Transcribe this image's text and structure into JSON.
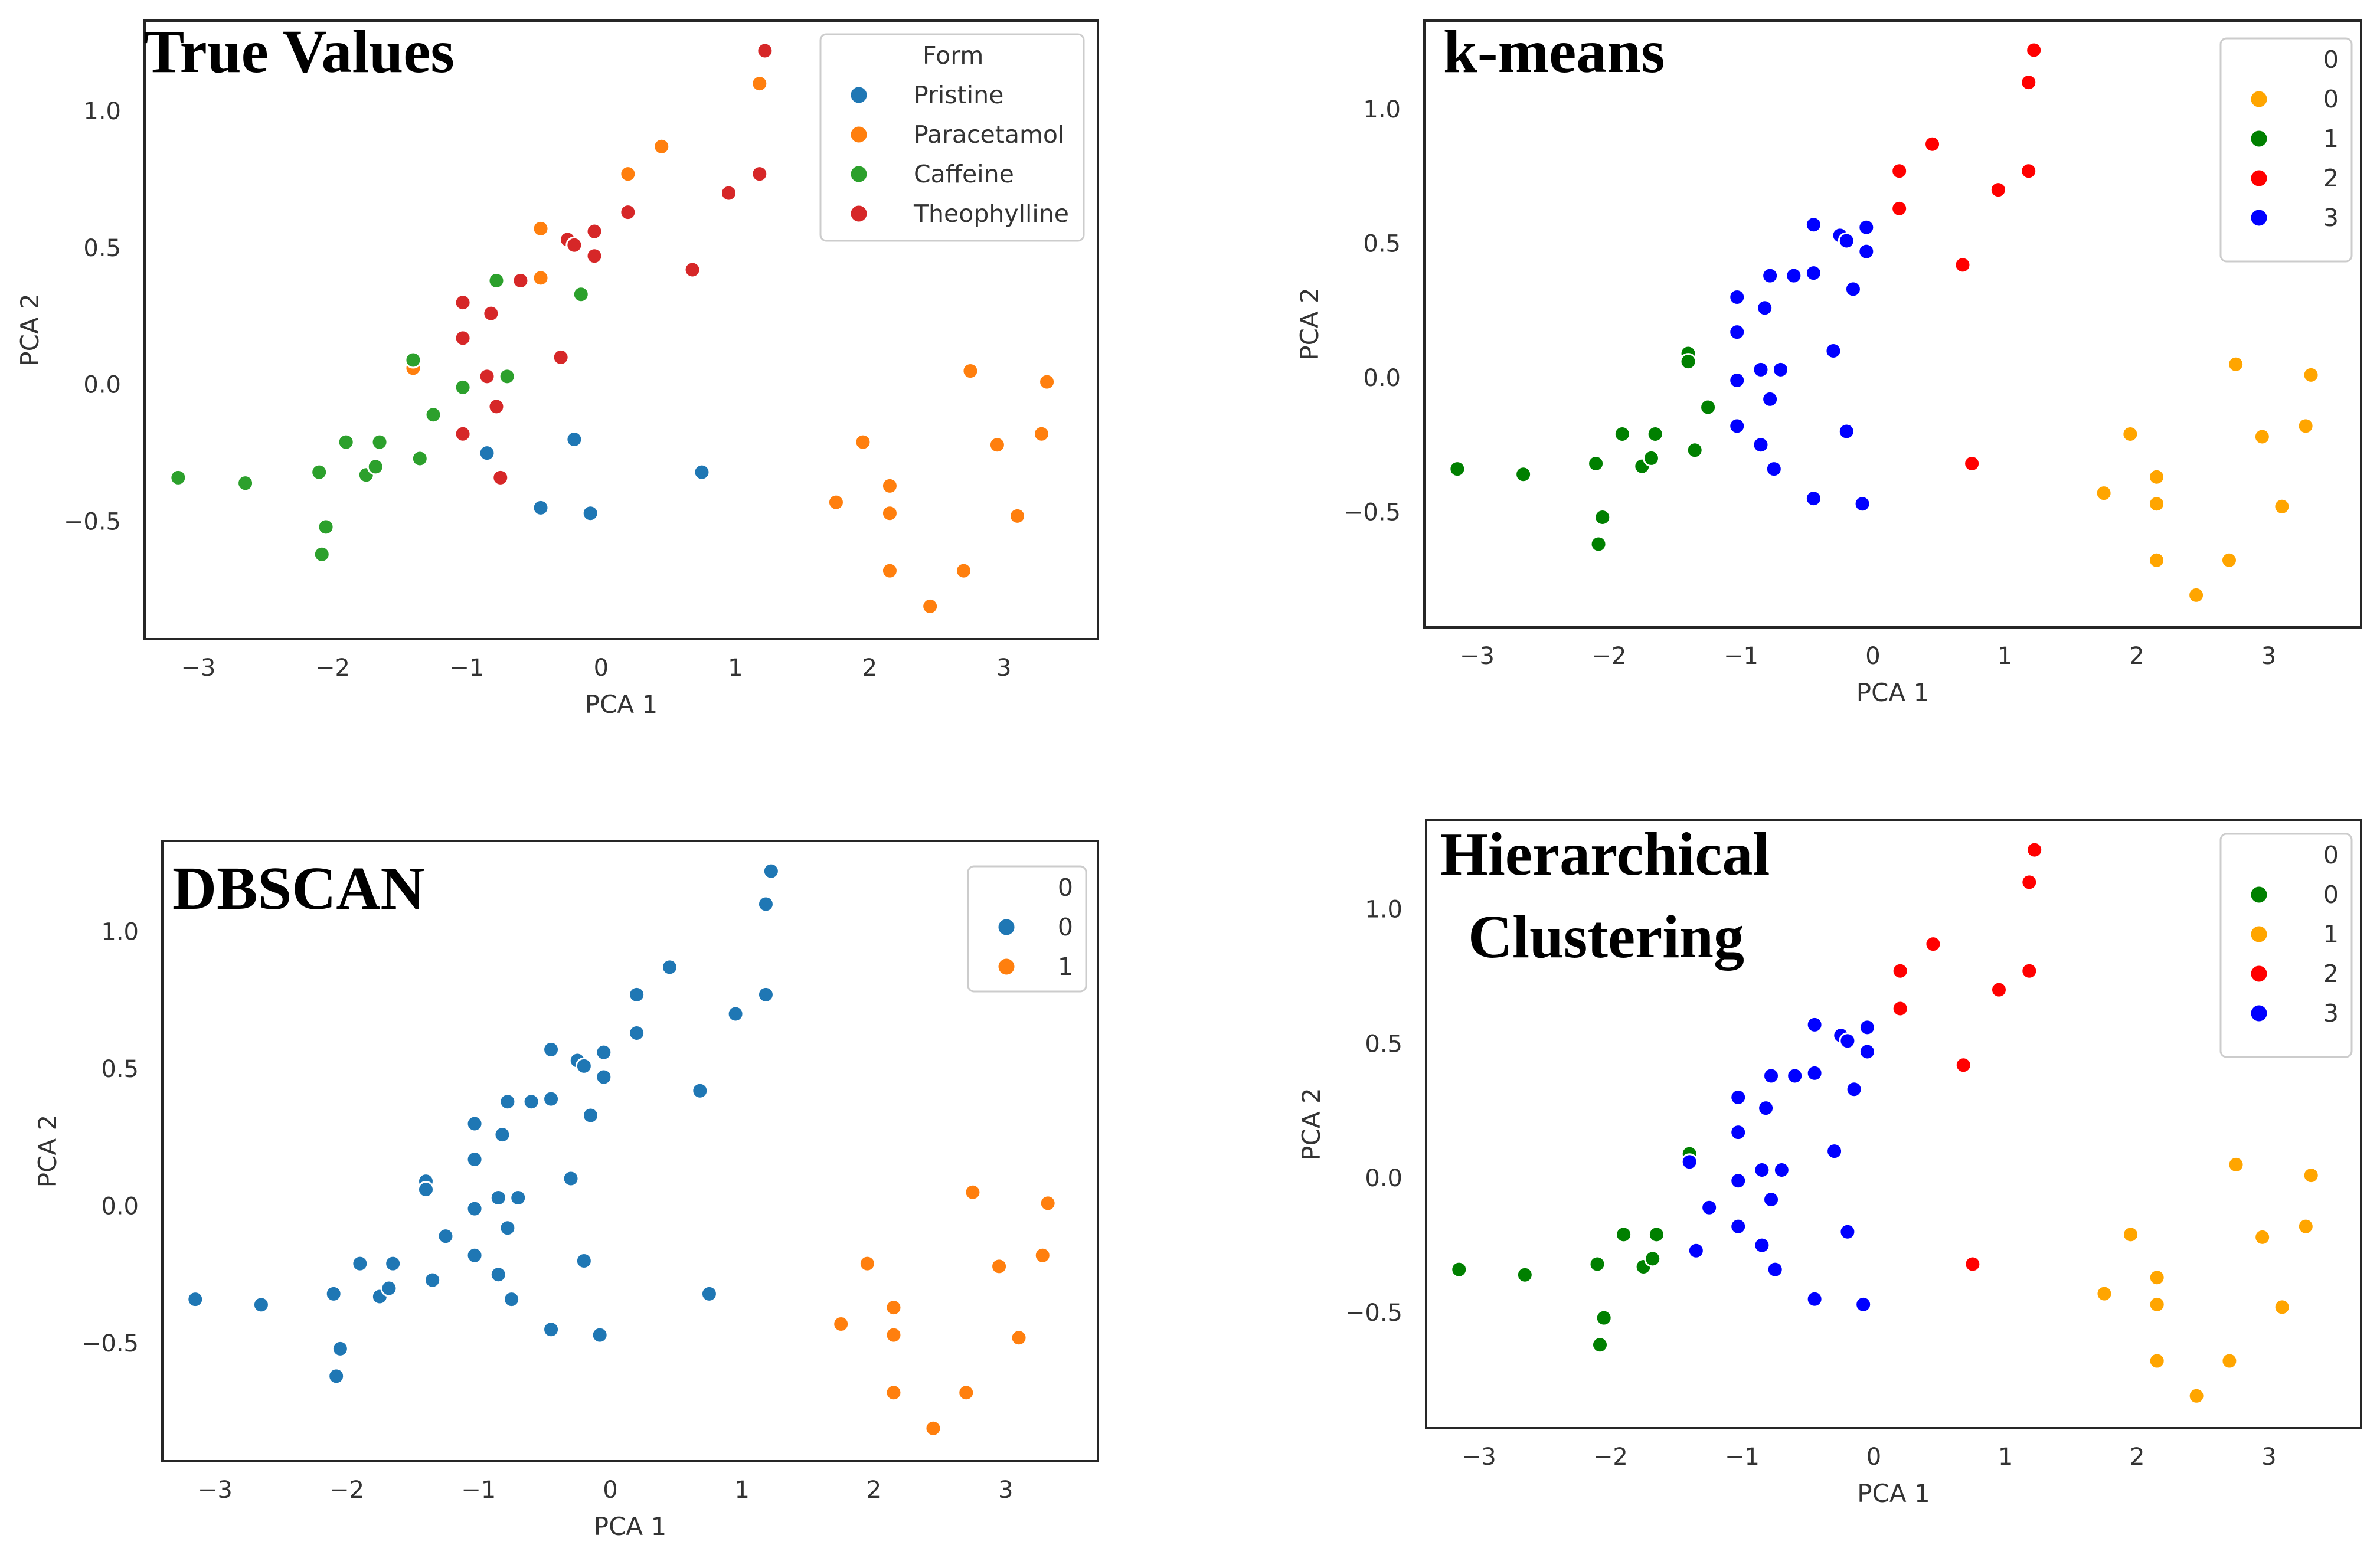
{
  "chart_data": [
    {
      "type": "scatter",
      "title": "True Values",
      "xlabel": "PCA 1",
      "ylabel": "PCA 2",
      "xlim": [
        -3.4,
        3.7
      ],
      "ylim": [
        -0.93,
        1.33
      ],
      "xticks": [
        -3,
        -2,
        -1,
        0,
        1,
        2,
        3
      ],
      "yticks": [
        -0.5,
        0.0,
        0.5,
        1.0
      ],
      "legend": {
        "title": "Form",
        "position": "top-right"
      },
      "series": [
        {
          "name": "Pristine",
          "color": "#1f77b4",
          "points": [
            [
              -0.85,
              -0.25
            ],
            [
              -0.2,
              -0.2
            ],
            [
              -0.45,
              -0.45
            ],
            [
              -0.08,
              -0.47
            ],
            [
              0.75,
              -0.32
            ]
          ]
        },
        {
          "name": "Paracetamol",
          "color": "#ff7f0e",
          "points": [
            [
              -1.4,
              0.06
            ],
            [
              -0.45,
              0.57
            ],
            [
              -0.45,
              0.39
            ],
            [
              0.2,
              0.77
            ],
            [
              0.45,
              0.87
            ],
            [
              1.18,
              1.1
            ],
            [
              1.75,
              -0.43
            ],
            [
              1.95,
              -0.21
            ],
            [
              2.15,
              -0.37
            ],
            [
              2.15,
              -0.47
            ],
            [
              2.15,
              -0.68
            ],
            [
              2.45,
              -0.81
            ],
            [
              2.7,
              -0.68
            ],
            [
              2.75,
              0.05
            ],
            [
              2.95,
              -0.22
            ],
            [
              3.1,
              -0.48
            ],
            [
              3.28,
              -0.18
            ],
            [
              3.32,
              0.01
            ]
          ]
        },
        {
          "name": "Caffeine",
          "color": "#2ca02c",
          "points": [
            [
              -3.15,
              -0.34
            ],
            [
              -2.65,
              -0.36
            ],
            [
              -2.1,
              -0.32
            ],
            [
              -2.05,
              -0.52
            ],
            [
              -2.08,
              -0.62
            ],
            [
              -1.9,
              -0.21
            ],
            [
              -1.75,
              -0.33
            ],
            [
              -1.68,
              -0.3
            ],
            [
              -1.65,
              -0.21
            ],
            [
              -1.4,
              0.09
            ],
            [
              -1.35,
              -0.27
            ],
            [
              -1.25,
              -0.11
            ],
            [
              -1.03,
              -0.01
            ],
            [
              -0.78,
              0.38
            ],
            [
              -0.7,
              0.03
            ],
            [
              -0.15,
              0.33
            ]
          ]
        },
        {
          "name": "Theophylline",
          "color": "#d62728",
          "points": [
            [
              -1.03,
              0.3
            ],
            [
              -1.03,
              0.17
            ],
            [
              -1.03,
              -0.18
            ],
            [
              -0.85,
              0.03
            ],
            [
              -0.82,
              0.26
            ],
            [
              -0.78,
              -0.08
            ],
            [
              -0.75,
              -0.34
            ],
            [
              -0.6,
              0.38
            ],
            [
              -0.3,
              0.1
            ],
            [
              -0.25,
              0.53
            ],
            [
              -0.2,
              0.51
            ],
            [
              -0.05,
              0.56
            ],
            [
              -0.05,
              0.47
            ],
            [
              0.2,
              0.63
            ],
            [
              0.68,
              0.42
            ],
            [
              0.95,
              0.7
            ],
            [
              1.18,
              0.77
            ],
            [
              1.22,
              1.22
            ]
          ]
        }
      ]
    },
    {
      "type": "scatter",
      "title": "k-means",
      "xlabel": "PCA 1",
      "ylabel": "PCA 2",
      "xlim": [
        -3.4,
        3.7
      ],
      "ylim": [
        -0.93,
        1.33
      ],
      "xticks": [
        -3,
        -2,
        -1,
        0,
        1,
        2,
        3
      ],
      "yticks": [
        -0.5,
        0.0,
        0.5,
        1.0
      ],
      "legend": {
        "title": "0",
        "position": "top-right"
      },
      "series": [
        {
          "name": "0",
          "color": "#ffa500",
          "points": [
            [
              1.75,
              -0.43
            ],
            [
              1.95,
              -0.21
            ],
            [
              2.15,
              -0.37
            ],
            [
              2.15,
              -0.47
            ],
            [
              2.15,
              -0.68
            ],
            [
              2.45,
              -0.81
            ],
            [
              2.7,
              -0.68
            ],
            [
              2.75,
              0.05
            ],
            [
              2.95,
              -0.22
            ],
            [
              3.1,
              -0.48
            ],
            [
              3.28,
              -0.18
            ],
            [
              3.32,
              0.01
            ]
          ]
        },
        {
          "name": "1",
          "color": "#008000",
          "points": [
            [
              -3.15,
              -0.34
            ],
            [
              -2.65,
              -0.36
            ],
            [
              -2.1,
              -0.32
            ],
            [
              -2.05,
              -0.52
            ],
            [
              -2.08,
              -0.62
            ],
            [
              -1.9,
              -0.21
            ],
            [
              -1.75,
              -0.33
            ],
            [
              -1.68,
              -0.3
            ],
            [
              -1.65,
              -0.21
            ],
            [
              -1.4,
              0.09
            ],
            [
              -1.4,
              0.06
            ],
            [
              -1.35,
              -0.27
            ],
            [
              -1.25,
              -0.11
            ]
          ]
        },
        {
          "name": "2",
          "color": "#ff0000",
          "points": [
            [
              0.2,
              0.77
            ],
            [
              0.2,
              0.63
            ],
            [
              0.45,
              0.87
            ],
            [
              0.68,
              0.42
            ],
            [
              0.75,
              -0.32
            ],
            [
              0.95,
              0.7
            ],
            [
              1.18,
              1.1
            ],
            [
              1.18,
              0.77
            ],
            [
              1.22,
              1.22
            ]
          ]
        },
        {
          "name": "3",
          "color": "#0000ff",
          "points": [
            [
              -1.03,
              0.3
            ],
            [
              -1.03,
              0.17
            ],
            [
              -1.03,
              -0.01
            ],
            [
              -1.03,
              -0.18
            ],
            [
              -0.85,
              0.03
            ],
            [
              -0.85,
              -0.25
            ],
            [
              -0.82,
              0.26
            ],
            [
              -0.78,
              0.38
            ],
            [
              -0.78,
              -0.08
            ],
            [
              -0.75,
              -0.34
            ],
            [
              -0.7,
              0.03
            ],
            [
              -0.6,
              0.38
            ],
            [
              -0.45,
              0.57
            ],
            [
              -0.45,
              0.39
            ],
            [
              -0.45,
              -0.45
            ],
            [
              -0.3,
              0.1
            ],
            [
              -0.25,
              0.53
            ],
            [
              -0.2,
              0.51
            ],
            [
              -0.2,
              -0.2
            ],
            [
              -0.15,
              0.33
            ],
            [
              -0.08,
              -0.47
            ],
            [
              -0.05,
              0.56
            ],
            [
              -0.05,
              0.47
            ]
          ]
        }
      ]
    },
    {
      "type": "scatter",
      "title": "DBSCAN",
      "xlabel": "PCA 1",
      "ylabel": "PCA 2",
      "xlim": [
        -3.4,
        3.7
      ],
      "ylim": [
        -0.93,
        1.33
      ],
      "xticks": [
        -3,
        -2,
        -1,
        0,
        1,
        2,
        3
      ],
      "yticks": [
        -0.5,
        0.0,
        0.5,
        1.0
      ],
      "legend": {
        "title": "0",
        "position": "top-right"
      },
      "series": [
        {
          "name": "0",
          "color": "#1f77b4",
          "points": [
            [
              -3.15,
              -0.34
            ],
            [
              -2.65,
              -0.36
            ],
            [
              -2.1,
              -0.32
            ],
            [
              -2.05,
              -0.52
            ],
            [
              -2.08,
              -0.62
            ],
            [
              -1.9,
              -0.21
            ],
            [
              -1.75,
              -0.33
            ],
            [
              -1.68,
              -0.3
            ],
            [
              -1.65,
              -0.21
            ],
            [
              -1.4,
              0.09
            ],
            [
              -1.4,
              0.06
            ],
            [
              -1.35,
              -0.27
            ],
            [
              -1.25,
              -0.11
            ],
            [
              -1.03,
              0.3
            ],
            [
              -1.03,
              0.17
            ],
            [
              -1.03,
              -0.01
            ],
            [
              -1.03,
              -0.18
            ],
            [
              -0.85,
              0.03
            ],
            [
              -0.85,
              -0.25
            ],
            [
              -0.82,
              0.26
            ],
            [
              -0.78,
              0.38
            ],
            [
              -0.78,
              -0.08
            ],
            [
              -0.75,
              -0.34
            ],
            [
              -0.7,
              0.03
            ],
            [
              -0.6,
              0.38
            ],
            [
              -0.45,
              0.57
            ],
            [
              -0.45,
              0.39
            ],
            [
              -0.45,
              -0.45
            ],
            [
              -0.3,
              0.1
            ],
            [
              -0.25,
              0.53
            ],
            [
              -0.2,
              0.51
            ],
            [
              -0.2,
              -0.2
            ],
            [
              -0.15,
              0.33
            ],
            [
              -0.08,
              -0.47
            ],
            [
              -0.05,
              0.56
            ],
            [
              -0.05,
              0.47
            ],
            [
              0.2,
              0.77
            ],
            [
              0.2,
              0.63
            ],
            [
              0.45,
              0.87
            ],
            [
              0.68,
              0.42
            ],
            [
              0.75,
              -0.32
            ],
            [
              0.95,
              0.7
            ],
            [
              1.18,
              1.1
            ],
            [
              1.18,
              0.77
            ],
            [
              1.22,
              1.22
            ]
          ]
        },
        {
          "name": "1",
          "color": "#ff7f0e",
          "points": [
            [
              1.75,
              -0.43
            ],
            [
              1.95,
              -0.21
            ],
            [
              2.15,
              -0.37
            ],
            [
              2.15,
              -0.47
            ],
            [
              2.15,
              -0.68
            ],
            [
              2.45,
              -0.81
            ],
            [
              2.7,
              -0.68
            ],
            [
              2.75,
              0.05
            ],
            [
              2.95,
              -0.22
            ],
            [
              3.1,
              -0.48
            ],
            [
              3.28,
              -0.18
            ],
            [
              3.32,
              0.01
            ]
          ]
        }
      ]
    },
    {
      "type": "scatter",
      "title": "Hierarchical Clustering",
      "xlabel": "PCA 1",
      "ylabel": "PCA 2",
      "xlim": [
        -3.4,
        3.7
      ],
      "ylim": [
        -0.93,
        1.33
      ],
      "xticks": [
        -3,
        -2,
        -1,
        0,
        1,
        2,
        3
      ],
      "yticks": [
        -0.5,
        0.0,
        0.5,
        1.0
      ],
      "legend": {
        "title": "0",
        "position": "top-right"
      },
      "series": [
        {
          "name": "0",
          "color": "#008000",
          "points": [
            [
              -3.15,
              -0.34
            ],
            [
              -2.65,
              -0.36
            ],
            [
              -2.1,
              -0.32
            ],
            [
              -2.05,
              -0.52
            ],
            [
              -2.08,
              -0.62
            ],
            [
              -1.9,
              -0.21
            ],
            [
              -1.75,
              -0.33
            ],
            [
              -1.68,
              -0.3
            ],
            [
              -1.65,
              -0.21
            ],
            [
              -1.4,
              0.09
            ]
          ]
        },
        {
          "name": "1",
          "color": "#ffa500",
          "points": [
            [
              1.75,
              -0.43
            ],
            [
              1.95,
              -0.21
            ],
            [
              2.15,
              -0.37
            ],
            [
              2.15,
              -0.47
            ],
            [
              2.15,
              -0.68
            ],
            [
              2.45,
              -0.81
            ],
            [
              2.7,
              -0.68
            ],
            [
              2.75,
              0.05
            ],
            [
              2.95,
              -0.22
            ],
            [
              3.1,
              -0.48
            ],
            [
              3.28,
              -0.18
            ],
            [
              3.32,
              0.01
            ]
          ]
        },
        {
          "name": "2",
          "color": "#ff0000",
          "points": [
            [
              0.2,
              0.77
            ],
            [
              0.2,
              0.63
            ],
            [
              0.45,
              0.87
            ],
            [
              0.68,
              0.42
            ],
            [
              0.75,
              -0.32
            ],
            [
              0.95,
              0.7
            ],
            [
              1.18,
              1.1
            ],
            [
              1.18,
              0.77
            ],
            [
              1.22,
              1.22
            ]
          ]
        },
        {
          "name": "3",
          "color": "#0000ff",
          "points": [
            [
              -1.4,
              0.06
            ],
            [
              -1.35,
              -0.27
            ],
            [
              -1.25,
              -0.11
            ],
            [
              -1.03,
              0.3
            ],
            [
              -1.03,
              0.17
            ],
            [
              -1.03,
              -0.01
            ],
            [
              -1.03,
              -0.18
            ],
            [
              -0.85,
              0.03
            ],
            [
              -0.85,
              -0.25
            ],
            [
              -0.82,
              0.26
            ],
            [
              -0.78,
              0.38
            ],
            [
              -0.78,
              -0.08
            ],
            [
              -0.75,
              -0.34
            ],
            [
              -0.7,
              0.03
            ],
            [
              -0.6,
              0.38
            ],
            [
              -0.45,
              0.57
            ],
            [
              -0.45,
              0.39
            ],
            [
              -0.45,
              -0.45
            ],
            [
              -0.3,
              0.1
            ],
            [
              -0.25,
              0.53
            ],
            [
              -0.2,
              0.51
            ],
            [
              -0.2,
              -0.2
            ],
            [
              -0.15,
              0.33
            ],
            [
              -0.08,
              -0.47
            ],
            [
              -0.05,
              0.56
            ],
            [
              -0.05,
              0.47
            ]
          ]
        }
      ]
    }
  ]
}
